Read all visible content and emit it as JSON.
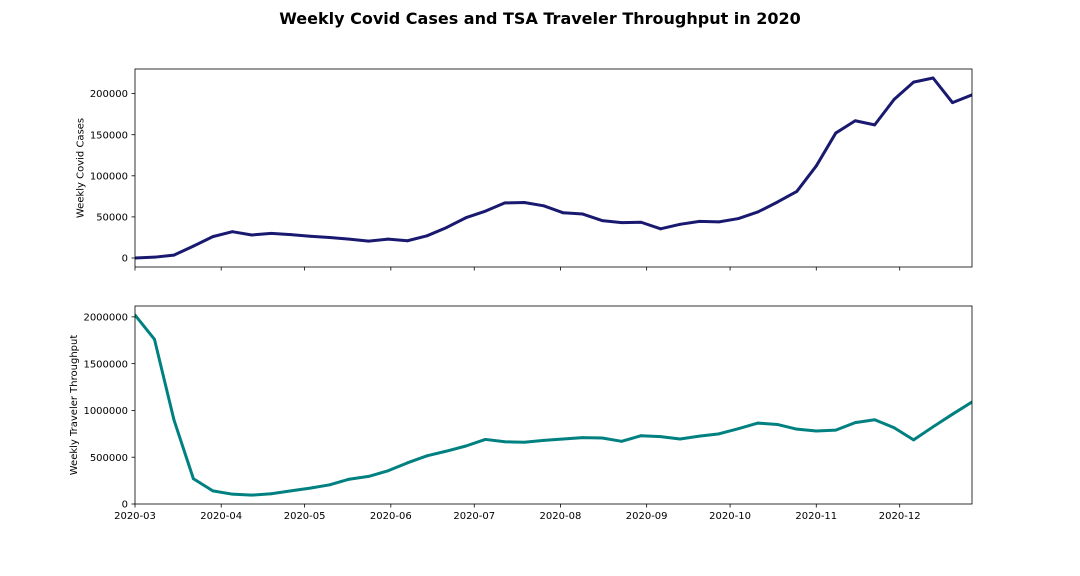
{
  "chart_data": {
    "type": "line",
    "title": "Weekly Covid Cases and TSA Traveler Throughput in 2020",
    "shared_x": true,
    "grid": false,
    "legend": false,
    "x": [
      "2020-03-01",
      "2020-03-08",
      "2020-03-15",
      "2020-03-22",
      "2020-03-29",
      "2020-04-05",
      "2020-04-12",
      "2020-04-19",
      "2020-04-26",
      "2020-05-03",
      "2020-05-10",
      "2020-05-17",
      "2020-05-24",
      "2020-05-31",
      "2020-06-07",
      "2020-06-14",
      "2020-06-21",
      "2020-06-28",
      "2020-07-05",
      "2020-07-12",
      "2020-07-19",
      "2020-07-26",
      "2020-08-02",
      "2020-08-09",
      "2020-08-16",
      "2020-08-23",
      "2020-08-30",
      "2020-09-06",
      "2020-09-13",
      "2020-09-20",
      "2020-09-27",
      "2020-10-04",
      "2020-10-11",
      "2020-10-18",
      "2020-10-25",
      "2020-11-01",
      "2020-11-08",
      "2020-11-15",
      "2020-11-22",
      "2020-11-29",
      "2020-12-06",
      "2020-12-13",
      "2020-12-20",
      "2020-12-27"
    ],
    "xlim": [
      "2020-03-01",
      "2020-12-27"
    ],
    "xticks": [
      "2020-03",
      "2020-04",
      "2020-05",
      "2020-06",
      "2020-07",
      "2020-08",
      "2020-09",
      "2020-10",
      "2020-11",
      "2020-12"
    ],
    "subplots": [
      {
        "ylabel": "Weekly Covid Cases",
        "color": "#191970",
        "ylim": [
          -10950,
          229950
        ],
        "yticks": [
          0,
          50000,
          100000,
          150000,
          200000
        ],
        "show_xtick_labels": false,
        "values": [
          0,
          1000,
          3500,
          14500,
          26000,
          32000,
          28000,
          30000,
          28500,
          26500,
          25000,
          23000,
          20500,
          23000,
          21000,
          27000,
          37000,
          49000,
          57000,
          67000,
          67500,
          63500,
          55000,
          53500,
          45500,
          43000,
          43500,
          35500,
          41000,
          44500,
          44000,
          48000,
          56000,
          68000,
          81000,
          112000,
          152000,
          167000,
          162000,
          193000,
          214000,
          219000,
          189000,
          198500
        ]
      },
      {
        "ylabel": "Weekly Traveler Throughput",
        "color": "#008080",
        "ylim": [
          0,
          2116250
        ],
        "yticks": [
          0,
          500000,
          1000000,
          1500000,
          2000000
        ],
        "show_xtick_labels": true,
        "values": [
          2020000,
          1760000,
          900000,
          270000,
          140000,
          105000,
          95000,
          110000,
          140000,
          170000,
          205000,
          265000,
          295000,
          355000,
          440000,
          515000,
          565000,
          620000,
          690000,
          665000,
          660000,
          680000,
          695000,
          710000,
          705000,
          670000,
          730000,
          720000,
          695000,
          725000,
          750000,
          805000,
          865000,
          850000,
          800000,
          780000,
          790000,
          870000,
          900000,
          815000,
          685000,
          825000,
          960000,
          1090000
        ]
      }
    ]
  }
}
